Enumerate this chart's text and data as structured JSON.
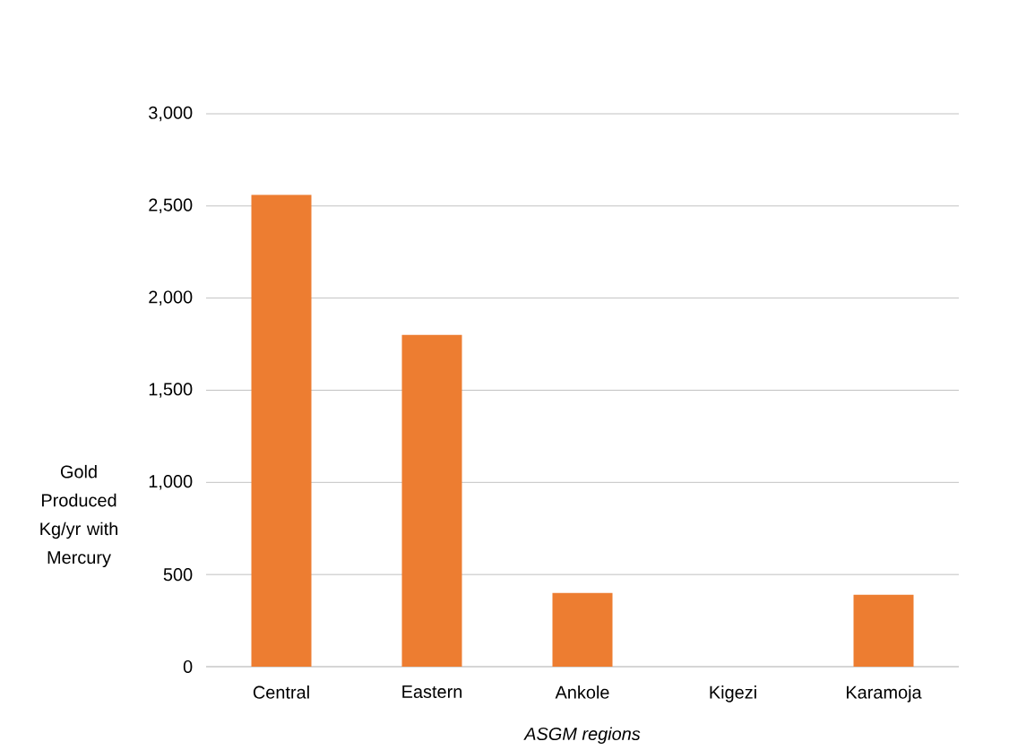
{
  "chart_data": {
    "type": "bar",
    "categories": [
      "Central",
      "Eastern",
      "Ankole",
      "Kigezi",
      "Karamoja"
    ],
    "values": [
      2560,
      1800,
      400,
      0,
      390
    ],
    "color": "#ed7d31",
    "xlabel": "ASGM regions",
    "ylabel": "Gold Produced Kg/yr with Mercury",
    "ylim": [
      0,
      3000
    ],
    "yticks": [
      {
        "value": 0,
        "label": "0"
      },
      {
        "value": 500,
        "label": "500"
      },
      {
        "value": 1000,
        "label": "1,000"
      },
      {
        "value": 1500,
        "label": "1,500"
      },
      {
        "value": 2000,
        "label": "2,000"
      },
      {
        "value": 2500,
        "label": "2,500"
      },
      {
        "value": 3000,
        "label": "3,000"
      }
    ],
    "grid": "y"
  }
}
